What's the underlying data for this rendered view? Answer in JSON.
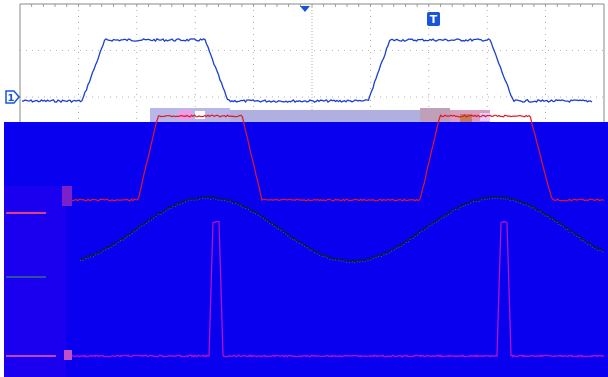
{
  "markers": {
    "trigger_top": "T",
    "ch1_marker": "1"
  },
  "colors": {
    "background": "#ffffff",
    "grid": "#9a9a9a",
    "ch1_trace": "#1a3fd0",
    "ch2_trace": "#e01828",
    "glitch_band": "#0a00f0",
    "glitch_mid": "#2600ee",
    "ch3_trace": "#b012c8",
    "sine_trace": "#0c1a48",
    "ch2_band": "#a0a0d8",
    "marker_blue": "#1855d8"
  }
}
